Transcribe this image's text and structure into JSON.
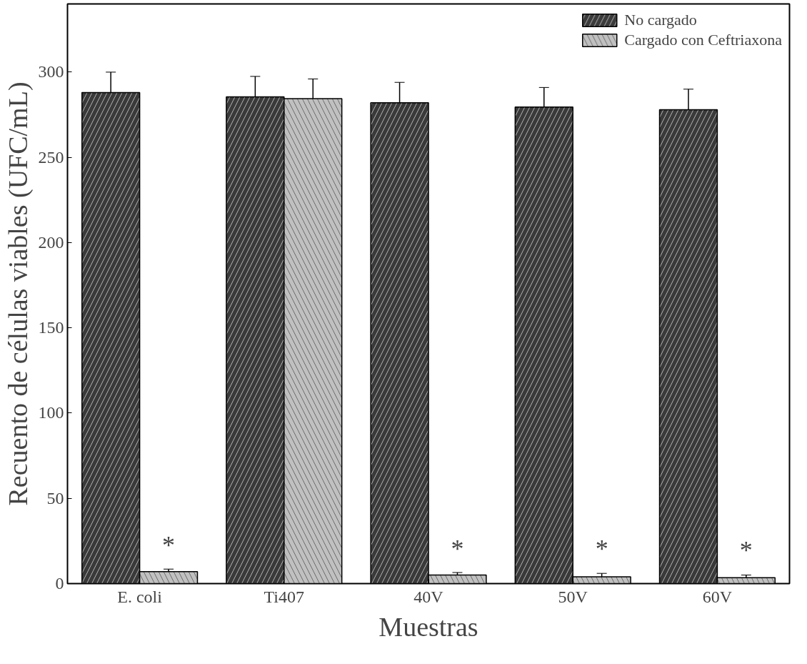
{
  "chart_data": {
    "type": "bar",
    "xlabel": "Muestras",
    "ylabel": "Recuento de células viables (UFC/mL)",
    "categories": [
      "E. coli",
      "Ti407",
      "40V",
      "50V",
      "60V"
    ],
    "series": [
      {
        "name": "No cargado",
        "color": "#3a3a3a",
        "values": [
          288,
          285.5,
          282,
          279.5,
          278
        ],
        "errors": [
          12,
          12,
          12,
          11.5,
          12
        ]
      },
      {
        "name": "Cargado con Ceftriaxona",
        "color": "#c0c0c0",
        "values": [
          7,
          284.5,
          5,
          4,
          3.5
        ],
        "errors": [
          1.5,
          11.5,
          1.5,
          2,
          1.5
        ]
      }
    ],
    "annotations": [
      {
        "text": "*",
        "x": "E. coli",
        "y": 14
      },
      {
        "text": "*",
        "x": "40V",
        "y": 12
      },
      {
        "text": "*",
        "x": "50V",
        "y": 12
      },
      {
        "text": "*",
        "x": "60V",
        "y": 11
      }
    ],
    "ylim": [
      0,
      340
    ],
    "yticks": [
      0,
      50,
      100,
      150,
      200,
      250,
      300
    ],
    "grid": false,
    "legend": "top right"
  }
}
